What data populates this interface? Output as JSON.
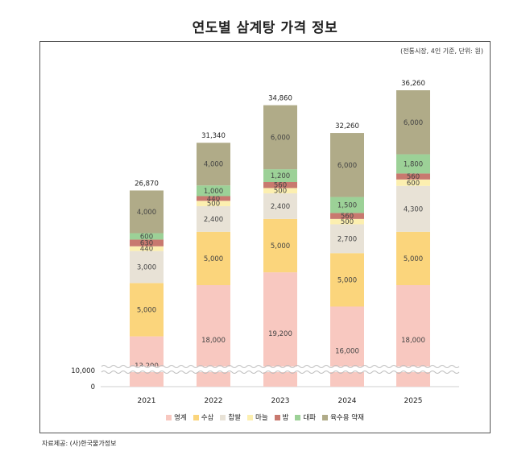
{
  "chart_data": {
    "type": "bar",
    "stacked": true,
    "title": "연도별 삼계탕 가격 정보",
    "subtitle": "(전통시장, 4인 기준, 단위: 원)",
    "source": "자료제공: (사)한국물가정보",
    "categories": [
      "2021",
      "2022",
      "2023",
      "2024",
      "2025"
    ],
    "totals": [
      "26,870",
      "31,340",
      "34,860",
      "32,260",
      "36,260"
    ],
    "y_ticks": [
      "0",
      "10,000"
    ],
    "axis_break": true,
    "series": [
      {
        "name": "영계",
        "color": "#f8c8c0",
        "values": [
          13200,
          18000,
          19200,
          16000,
          18000
        ],
        "labels": [
          "13,200",
          "18,000",
          "19,200",
          "16,000",
          "18,000"
        ]
      },
      {
        "name": "수삼",
        "color": "#fbd57c",
        "values": [
          5000,
          5000,
          5000,
          5000,
          5000
        ],
        "labels": [
          "5,000",
          "5,000",
          "5,000",
          "5,000",
          "5,000"
        ]
      },
      {
        "name": "찹쌀",
        "color": "#e8e2d6",
        "values": [
          3000,
          2400,
          2400,
          2700,
          4300
        ],
        "labels": [
          "3,000",
          "2,400",
          "2,400",
          "2,700",
          "4,300"
        ]
      },
      {
        "name": "마늘",
        "color": "#fcefb0",
        "values": [
          440,
          500,
          500,
          500,
          600
        ],
        "labels": [
          "440",
          "500",
          "500",
          "500",
          "600"
        ]
      },
      {
        "name": "밤",
        "color": "#c8796f",
        "values": [
          630,
          440,
          560,
          560,
          560
        ],
        "labels": [
          "630",
          "440",
          "560",
          "560",
          "560"
        ]
      },
      {
        "name": "대파",
        "color": "#9cd197",
        "values": [
          600,
          1000,
          1200,
          1500,
          1800
        ],
        "labels": [
          "600",
          "1,000",
          "1,200",
          "1,500",
          "1,800"
        ]
      },
      {
        "name": "육수용 약재",
        "color": "#b0ab88",
        "values": [
          4000,
          4000,
          6000,
          6000,
          6000
        ],
        "labels": [
          "4,000",
          "4,000",
          "6,000",
          "6,000",
          "6,000"
        ]
      }
    ]
  }
}
